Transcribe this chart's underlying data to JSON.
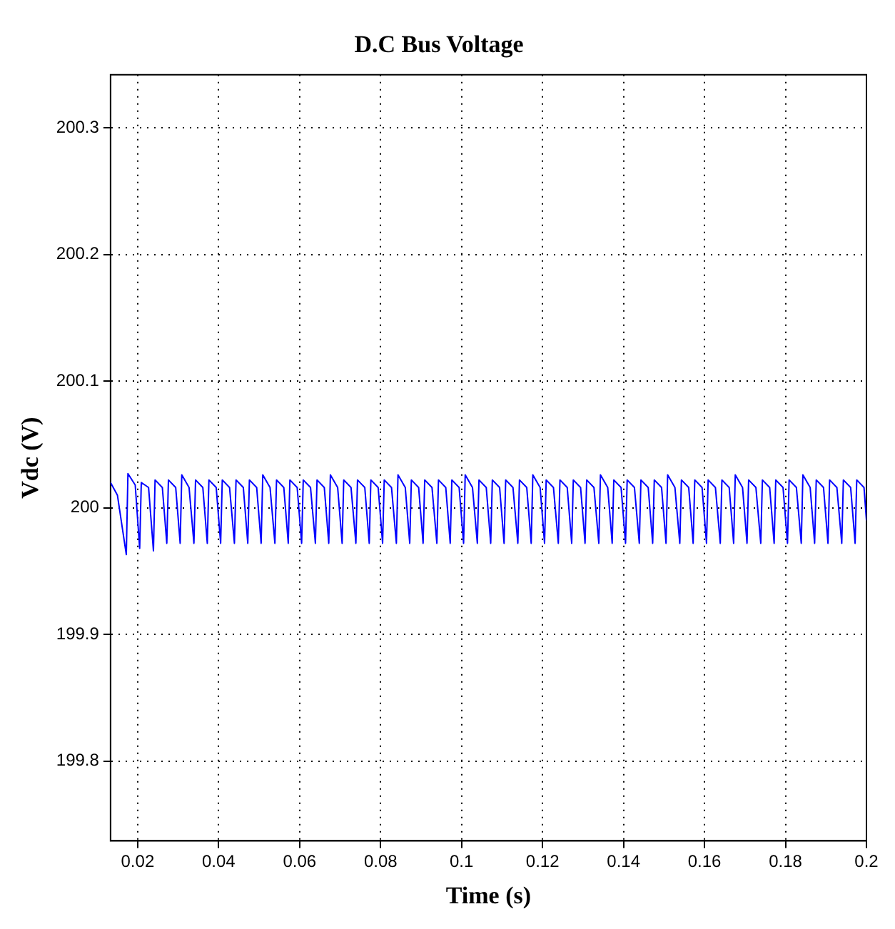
{
  "chart_data": {
    "type": "line",
    "title": "D.C Bus Voltage",
    "xlabel": "Time (s)",
    "ylabel": "Vdc (V)",
    "xlim": [
      0.0133,
      0.2
    ],
    "ylim": [
      199.737,
      200.342
    ],
    "xticks": [
      0.02,
      0.04,
      0.06,
      0.08,
      0.1,
      0.12,
      0.14,
      0.16,
      0.18,
      0.2
    ],
    "yticks": [
      199.8,
      199.9,
      200,
      200.1,
      200.2,
      200.3
    ],
    "grid": true,
    "legend": false,
    "marker": "none",
    "line_style": "solid",
    "series": [
      {
        "color": "#0000ff",
        "x": [
          0.0133,
          0.015,
          0.0172,
          0.0176,
          0.0194,
          0.0205,
          0.0209,
          0.0227,
          0.0239,
          0.0243,
          0.0261,
          0.0272,
          0.0276,
          0.0294,
          0.0305,
          0.0309,
          0.0327,
          0.0339,
          0.0343,
          0.0361,
          0.0372,
          0.0376,
          0.0394,
          0.0405,
          0.0409,
          0.0427,
          0.0439,
          0.0443,
          0.0461,
          0.0472,
          0.0476,
          0.0494,
          0.0505,
          0.0509,
          0.0527,
          0.0539,
          0.0543,
          0.0561,
          0.0572,
          0.0576,
          0.0594,
          0.0605,
          0.0609,
          0.0627,
          0.0639,
          0.0643,
          0.0661,
          0.0672,
          0.0676,
          0.0694,
          0.0705,
          0.0709,
          0.0727,
          0.0739,
          0.0743,
          0.0761,
          0.0772,
          0.0776,
          0.0794,
          0.0805,
          0.0809,
          0.0827,
          0.0839,
          0.0843,
          0.0861,
          0.0872,
          0.0876,
          0.0894,
          0.0905,
          0.0909,
          0.0927,
          0.0939,
          0.0943,
          0.0961,
          0.0972,
          0.0976,
          0.0994,
          0.1005,
          0.1009,
          0.1027,
          0.1039,
          0.1043,
          0.1061,
          0.1072,
          0.1076,
          0.1094,
          0.1105,
          0.1109,
          0.1127,
          0.1139,
          0.1143,
          0.1161,
          0.1172,
          0.1176,
          0.1194,
          0.1205,
          0.1209,
          0.1227,
          0.1239,
          0.1243,
          0.1261,
          0.1272,
          0.1276,
          0.1294,
          0.1305,
          0.1309,
          0.1327,
          0.1339,
          0.1343,
          0.1361,
          0.1372,
          0.1376,
          0.1394,
          0.1405,
          0.1409,
          0.1427,
          0.1439,
          0.1443,
          0.1461,
          0.1472,
          0.1476,
          0.1494,
          0.1505,
          0.1509,
          0.1527,
          0.1539,
          0.1543,
          0.1561,
          0.1572,
          0.1576,
          0.1594,
          0.1605,
          0.1609,
          0.1627,
          0.1639,
          0.1643,
          0.1661,
          0.1672,
          0.1676,
          0.1694,
          0.1705,
          0.1709,
          0.1727,
          0.1739,
          0.1743,
          0.1761,
          0.1772,
          0.1776,
          0.1794,
          0.1805,
          0.1809,
          0.1827,
          0.1839,
          0.1843,
          0.1861,
          0.1872,
          0.1876,
          0.1894,
          0.1905,
          0.1909,
          0.1927,
          0.1939,
          0.1943,
          0.1961,
          0.1972,
          0.1976,
          0.1994,
          0.2
        ],
        "values": [
          200.02,
          200.01,
          199.963,
          200.027,
          200.018,
          199.968,
          200.02,
          200.016,
          199.966,
          200.022,
          200.016,
          199.972,
          200.022,
          200.016,
          199.972,
          200.026,
          200.016,
          199.972,
          200.022,
          200.016,
          199.972,
          200.022,
          200.016,
          199.972,
          200.022,
          200.016,
          199.972,
          200.022,
          200.016,
          199.972,
          200.022,
          200.016,
          199.972,
          200.026,
          200.016,
          199.972,
          200.022,
          200.016,
          199.972,
          200.022,
          200.016,
          199.972,
          200.022,
          200.016,
          199.972,
          200.022,
          200.016,
          199.972,
          200.026,
          200.016,
          199.972,
          200.022,
          200.016,
          199.972,
          200.022,
          200.016,
          199.972,
          200.022,
          200.016,
          199.972,
          200.022,
          200.016,
          199.972,
          200.026,
          200.016,
          199.972,
          200.022,
          200.016,
          199.972,
          200.022,
          200.016,
          199.972,
          200.022,
          200.016,
          199.972,
          200.022,
          200.016,
          199.972,
          200.026,
          200.016,
          199.972,
          200.022,
          200.016,
          199.972,
          200.022,
          200.016,
          199.972,
          200.022,
          200.016,
          199.972,
          200.022,
          200.016,
          199.972,
          200.026,
          200.016,
          199.972,
          200.022,
          200.016,
          199.972,
          200.022,
          200.016,
          199.972,
          200.022,
          200.016,
          199.972,
          200.022,
          200.016,
          199.972,
          200.026,
          200.016,
          199.972,
          200.022,
          200.016,
          199.972,
          200.022,
          200.016,
          199.972,
          200.022,
          200.016,
          199.972,
          200.022,
          200.016,
          199.972,
          200.026,
          200.016,
          199.972,
          200.022,
          200.016,
          199.972,
          200.022,
          200.016,
          199.972,
          200.022,
          200.016,
          199.972,
          200.022,
          200.016,
          199.972,
          200.026,
          200.016,
          199.972,
          200.022,
          200.016,
          199.972,
          200.022,
          200.016,
          199.972,
          200.022,
          200.016,
          199.972,
          200.022,
          200.016,
          199.972,
          200.026,
          200.016,
          199.972,
          200.022,
          200.016,
          199.972,
          200.022,
          200.016,
          199.972,
          200.022,
          200.016,
          199.972,
          200.022,
          200.016,
          199.99
        ]
      }
    ]
  }
}
